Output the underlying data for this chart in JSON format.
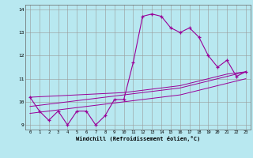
{
  "xlabel": "Windchill (Refroidissement éolien,°C)",
  "x": [
    0,
    1,
    2,
    3,
    4,
    5,
    6,
    7,
    8,
    9,
    10,
    11,
    12,
    13,
    14,
    15,
    16,
    17,
    18,
    19,
    20,
    21,
    22,
    23
  ],
  "temp": [
    10.2,
    9.6,
    9.2,
    9.6,
    9.0,
    9.6,
    9.6,
    9.0,
    9.4,
    10.1,
    10.1,
    11.7,
    13.7,
    13.8,
    13.7,
    13.2,
    13.0,
    13.2,
    12.8,
    12.0,
    11.5,
    11.8,
    11.1,
    11.3
  ],
  "wc1": [
    9.5,
    9.55,
    9.6,
    9.65,
    9.7,
    9.75,
    9.8,
    9.85,
    9.9,
    9.95,
    10.0,
    10.05,
    10.1,
    10.15,
    10.2,
    10.25,
    10.3,
    10.4,
    10.5,
    10.6,
    10.7,
    10.8,
    10.9,
    11.0
  ],
  "wc2": [
    9.8,
    9.85,
    9.9,
    9.95,
    10.0,
    10.05,
    10.1,
    10.15,
    10.2,
    10.25,
    10.3,
    10.35,
    10.4,
    10.45,
    10.5,
    10.55,
    10.6,
    10.7,
    10.8,
    10.9,
    11.0,
    11.1,
    11.2,
    11.3
  ],
  "wc3": [
    10.2,
    10.22,
    10.24,
    10.26,
    10.28,
    10.3,
    10.32,
    10.34,
    10.36,
    10.38,
    10.4,
    10.45,
    10.5,
    10.55,
    10.6,
    10.65,
    10.7,
    10.8,
    10.9,
    11.0,
    11.1,
    11.2,
    11.25,
    11.3
  ],
  "color": "#990099",
  "bg_color": "#b8e8f0",
  "grid_color": "#999999",
  "ylim": [
    8.8,
    14.2
  ],
  "xlim": [
    -0.5,
    23.5
  ],
  "yticks": [
    9,
    10,
    11,
    12,
    13,
    14
  ]
}
